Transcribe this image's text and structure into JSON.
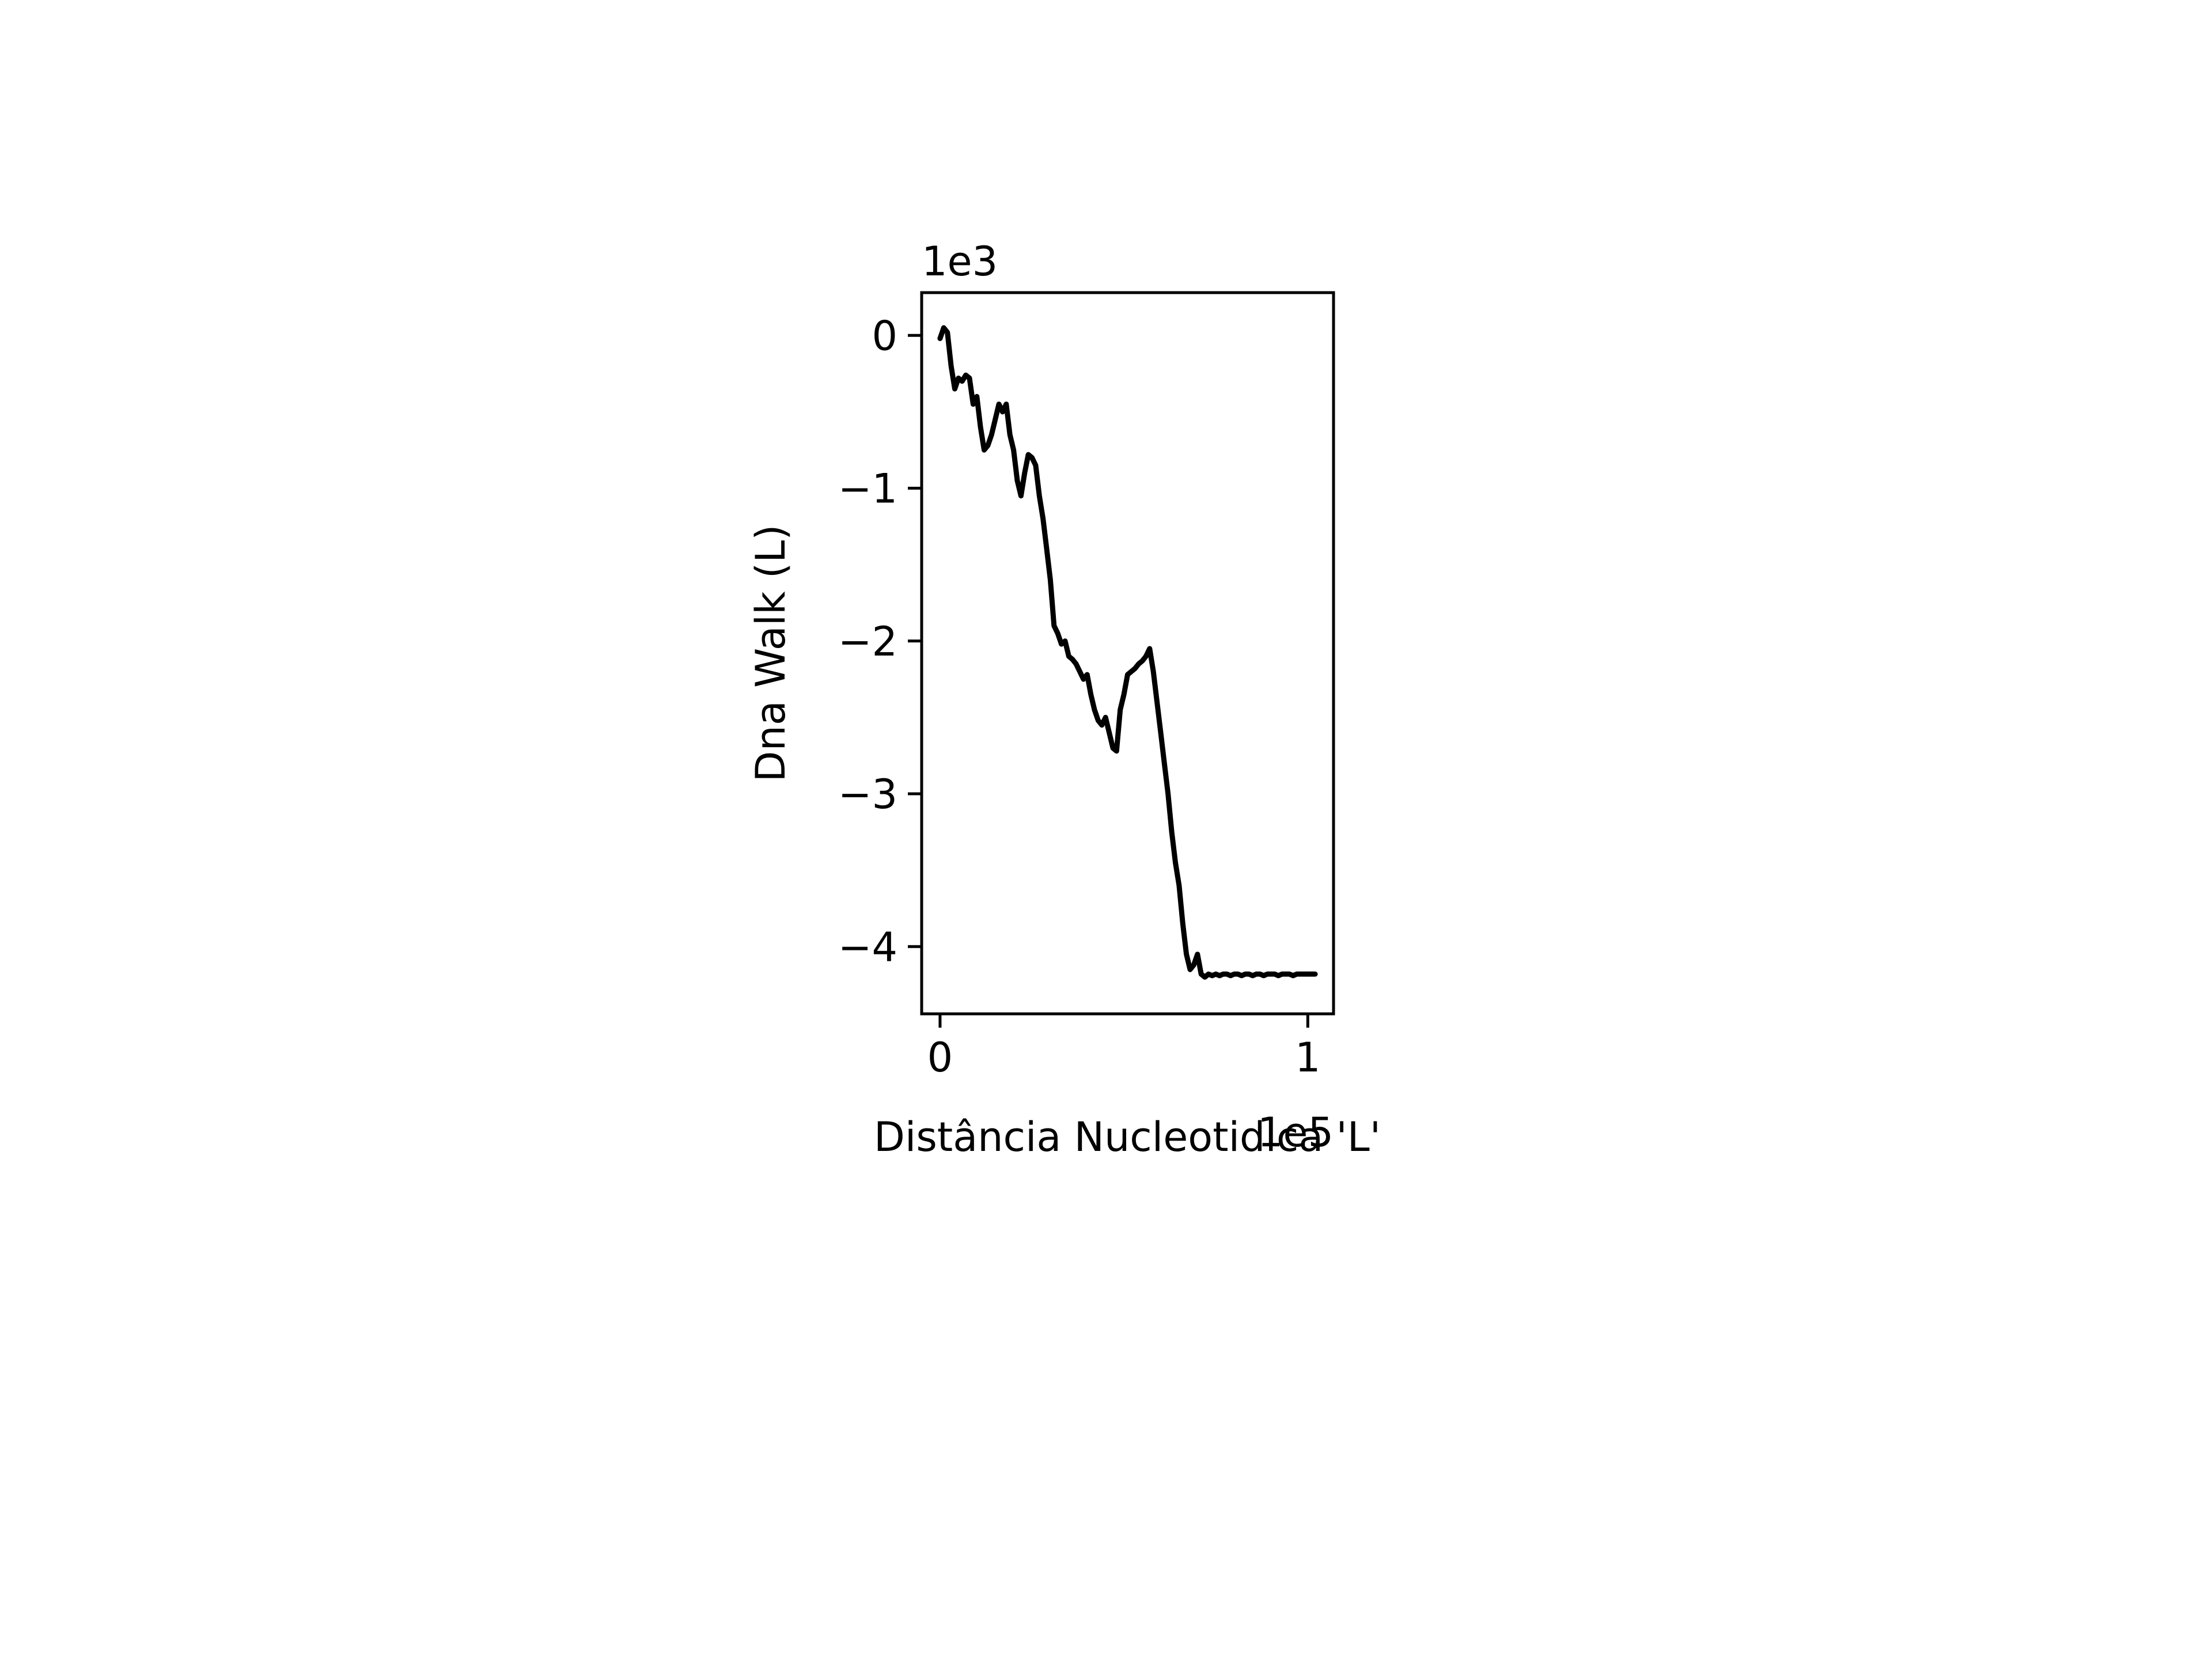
{
  "chart_data": {
    "type": "line",
    "title": "",
    "xlabel": "Distância Nucleotidica 'L'",
    "ylabel": "Dna Walk (L)",
    "x_offset_label": "1e5",
    "y_offset_label": "1e3",
    "x_scale": 100000,
    "y_scale": 1000,
    "xlim": [
      -0.05,
      1.07
    ],
    "ylim": [
      -4.44,
      0.28
    ],
    "x_ticks": [
      0,
      1
    ],
    "x_tick_labels": [
      "0",
      "1"
    ],
    "y_ticks": [
      0,
      -1,
      -2,
      -3,
      -4
    ],
    "y_tick_labels": [
      "0",
      "−1",
      "−2",
      "−3",
      "−4"
    ],
    "grid": false,
    "legend": "none",
    "line_color": "#000000",
    "series": [
      {
        "x": [
          0.0,
          0.01,
          0.02,
          0.03,
          0.04,
          0.05,
          0.06,
          0.07,
          0.08,
          0.09,
          0.1,
          0.11,
          0.12,
          0.13,
          0.14,
          0.15,
          0.16,
          0.17,
          0.18,
          0.19,
          0.2,
          0.21,
          0.22,
          0.23,
          0.24,
          0.25,
          0.26,
          0.27,
          0.28,
          0.29,
          0.3,
          0.31,
          0.32,
          0.33,
          0.34,
          0.35,
          0.36,
          0.37,
          0.38,
          0.39,
          0.4,
          0.41,
          0.42,
          0.43,
          0.44,
          0.45,
          0.46,
          0.47,
          0.48,
          0.49,
          0.5,
          0.51,
          0.52,
          0.53,
          0.54,
          0.55,
          0.56,
          0.57,
          0.58,
          0.59,
          0.6,
          0.61,
          0.62,
          0.63,
          0.64,
          0.65,
          0.66,
          0.67,
          0.68,
          0.69,
          0.7,
          0.71,
          0.72,
          0.73,
          0.74,
          0.75,
          0.76,
          0.77,
          0.78,
          0.79,
          0.8,
          0.81,
          0.82,
          0.83,
          0.84,
          0.85,
          0.86,
          0.87,
          0.88,
          0.89,
          0.9,
          0.91,
          0.92,
          0.93,
          0.94,
          0.95,
          0.96,
          0.97,
          0.98,
          0.99,
          1.0,
          1.01,
          1.02
        ],
        "y": [
          -0.02,
          0.05,
          0.02,
          -0.2,
          -0.35,
          -0.28,
          -0.3,
          -0.26,
          -0.28,
          -0.45,
          -0.4,
          -0.6,
          -0.75,
          -0.72,
          -0.65,
          -0.55,
          -0.45,
          -0.5,
          -0.45,
          -0.65,
          -0.75,
          -0.95,
          -1.05,
          -0.9,
          -0.78,
          -0.8,
          -0.85,
          -1.05,
          -1.2,
          -1.4,
          -1.6,
          -1.9,
          -1.95,
          -2.02,
          -2.0,
          -2.1,
          -2.12,
          -2.15,
          -2.2,
          -2.25,
          -2.22,
          -2.35,
          -2.45,
          -2.52,
          -2.55,
          -2.5,
          -2.6,
          -2.7,
          -2.72,
          -2.45,
          -2.35,
          -2.22,
          -2.2,
          -2.18,
          -2.15,
          -2.13,
          -2.1,
          -2.05,
          -2.2,
          -2.4,
          -2.6,
          -2.8,
          -3.0,
          -3.25,
          -3.45,
          -3.6,
          -3.85,
          -4.05,
          -4.15,
          -4.12,
          -4.05,
          -4.18,
          -4.2,
          -4.18,
          -4.19,
          -4.18,
          -4.19,
          -4.18,
          -4.18,
          -4.19,
          -4.18,
          -4.18,
          -4.19,
          -4.18,
          -4.18,
          -4.19,
          -4.18,
          -4.18,
          -4.19,
          -4.18,
          -4.18,
          -4.18,
          -4.19,
          -4.18,
          -4.18,
          -4.18,
          -4.19,
          -4.18,
          -4.18,
          -4.18,
          -4.18,
          -4.18,
          -4.18
        ]
      }
    ]
  }
}
